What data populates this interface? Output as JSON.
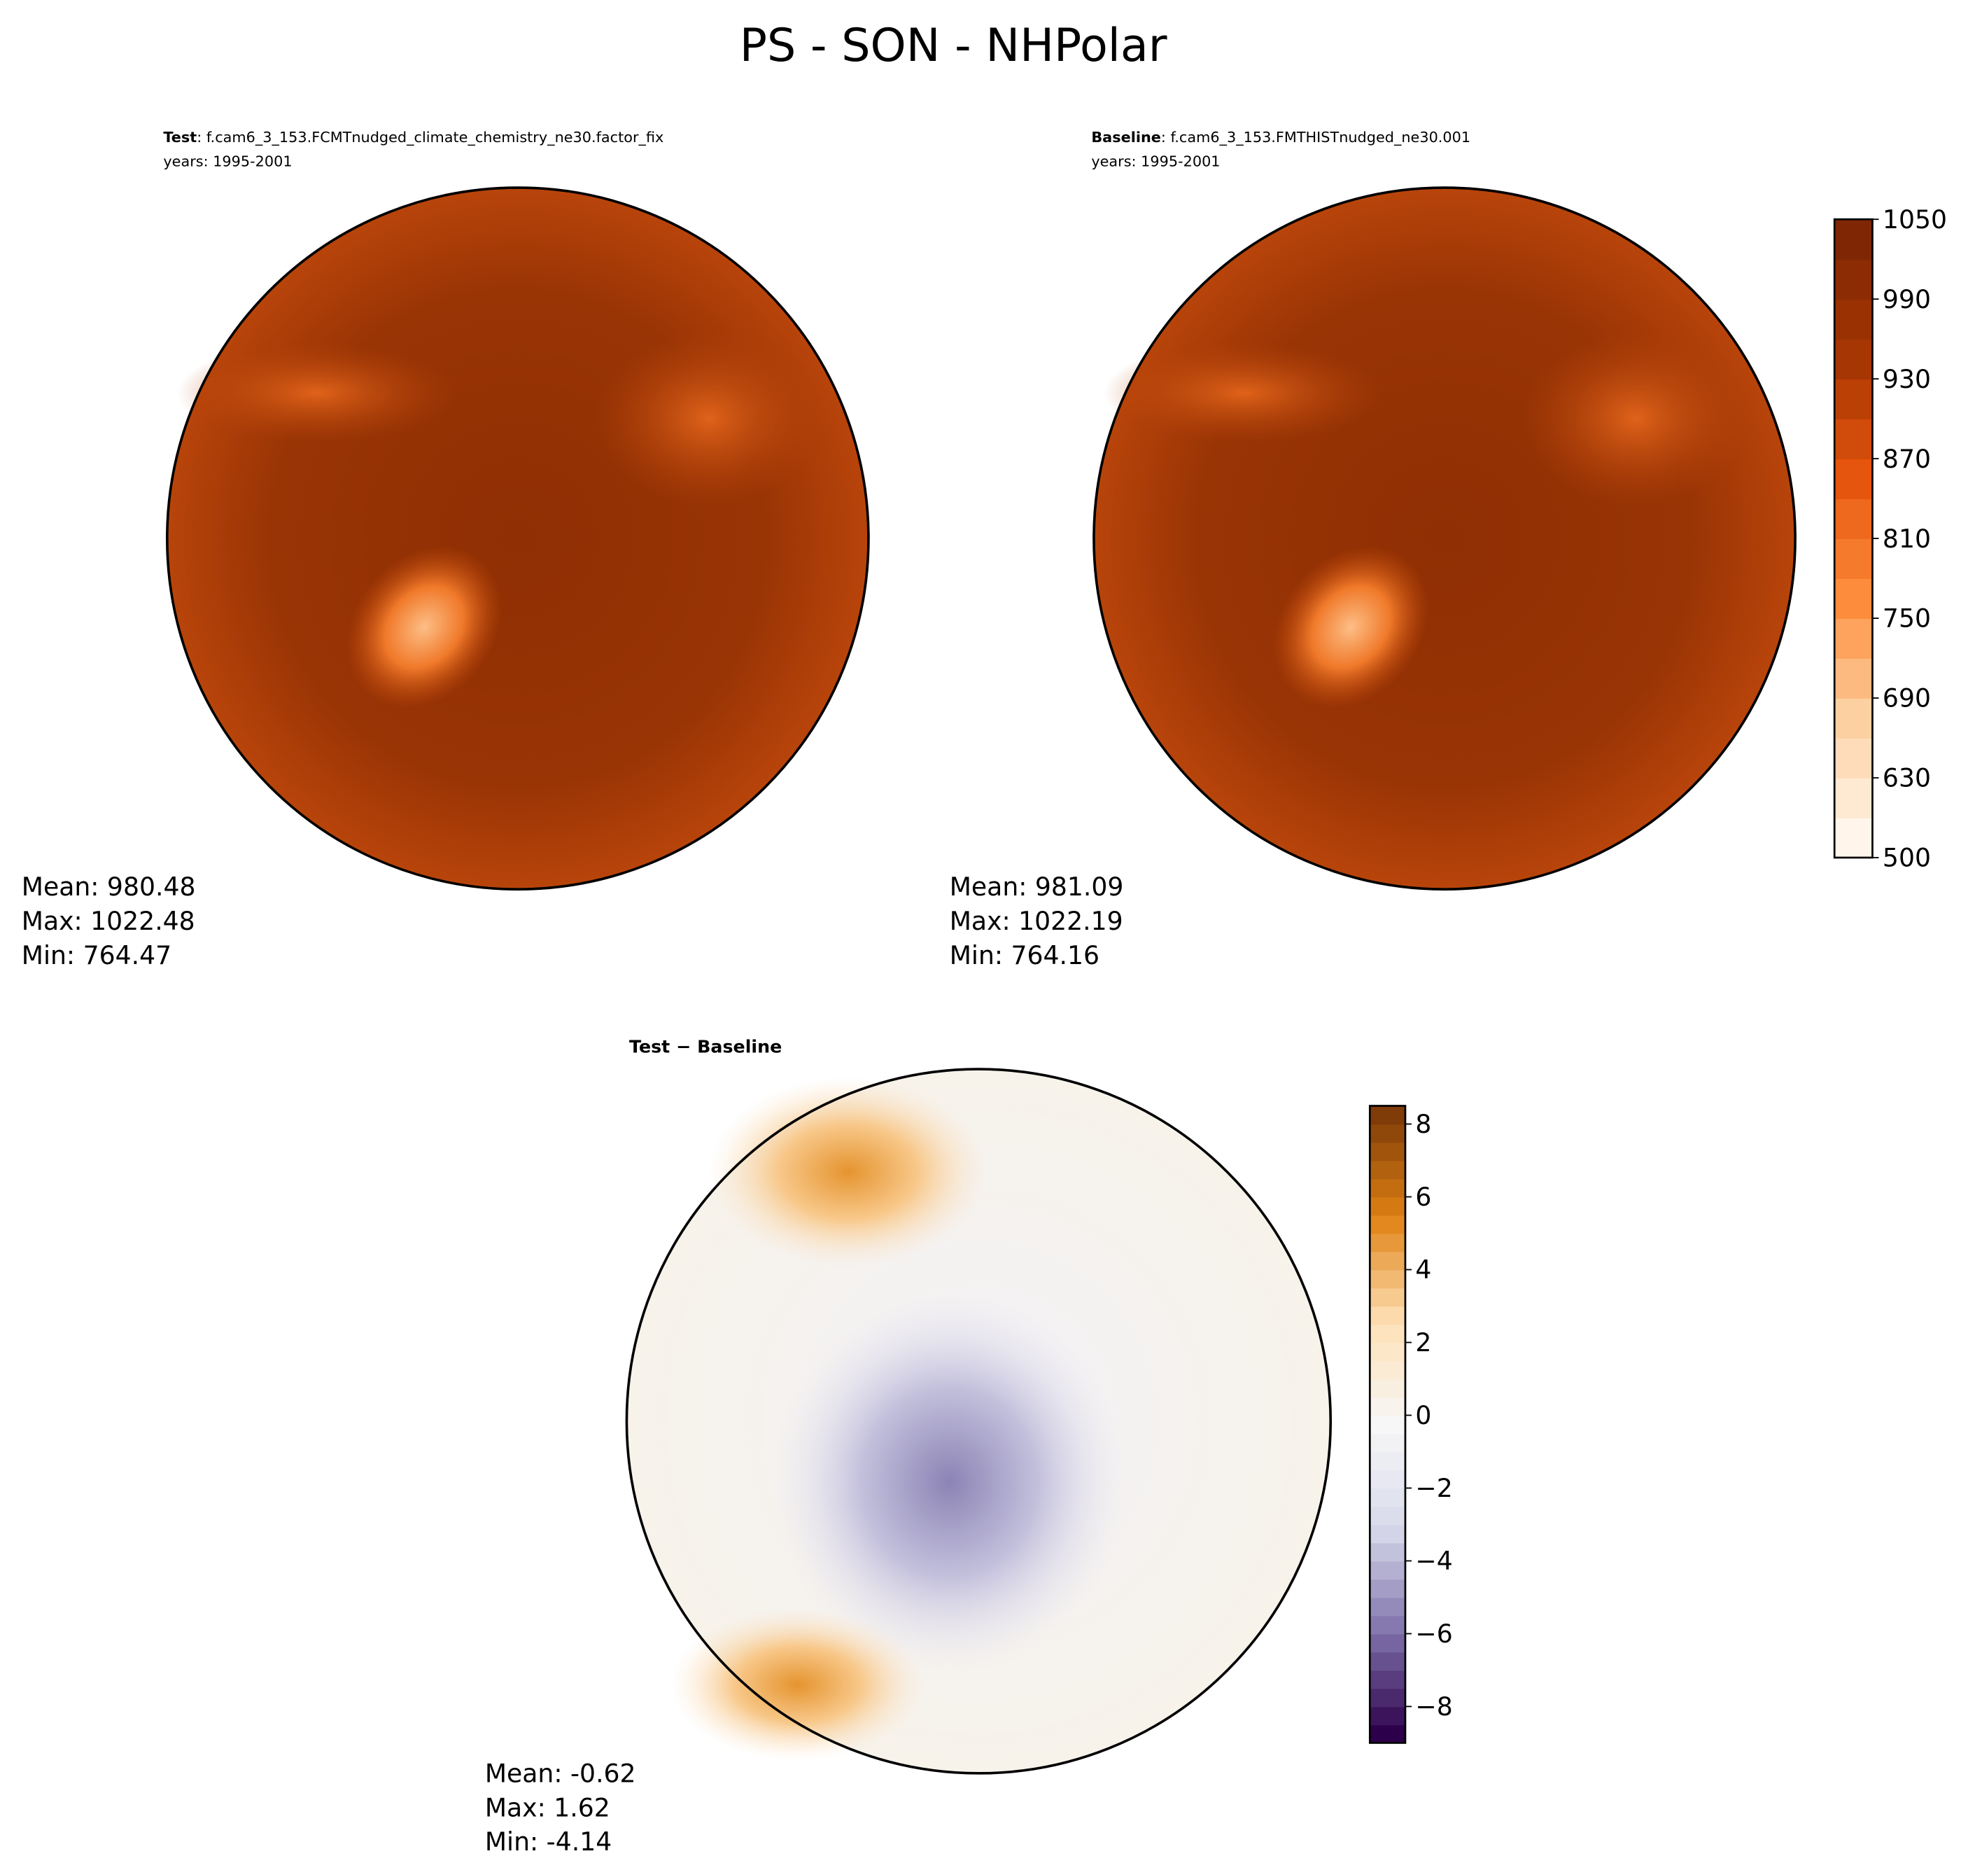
{
  "title": "PS - SON - NHPolar",
  "panels": [
    {
      "label": "Test",
      "case": ": f.cam6_3_153.FCMTnudged_climate_chemistry_ne30.factor_fix",
      "years": "years: 1995-2001",
      "stats": [
        "Mean: 980.48",
        "Max: 1022.48",
        "Min: 764.47"
      ]
    },
    {
      "label": "Baseline",
      "case": ": f.cam6_3_153.FMTHISTnudged_ne30.001",
      "years": "years: 1995-2001",
      "stats": [
        "Mean: 981.09",
        "Max: 1022.19",
        "Min: 764.16"
      ]
    },
    {
      "label": "Test − Baseline",
      "stats": [
        "Mean: -0.62",
        "Max:  1.62",
        "Min: -4.14"
      ]
    }
  ],
  "colorbars": [
    {
      "levels": [
        500,
        600,
        630,
        660,
        690,
        720,
        750,
        780,
        810,
        840,
        870,
        900,
        930,
        960,
        990,
        1020,
        1050
      ],
      "ticks": [
        500,
        630,
        690,
        750,
        810,
        870,
        930,
        990,
        1050
      ]
    },
    {
      "lim": [
        -9,
        8.5
      ],
      "ticks": [
        {
          "value": -8,
          "label": "−8"
        },
        {
          "value": -6,
          "label": "−6"
        },
        {
          "value": -4,
          "label": "−4"
        },
        {
          "value": -2,
          "label": "−2"
        },
        0,
        2,
        4,
        6,
        8
      ]
    }
  ]
}
